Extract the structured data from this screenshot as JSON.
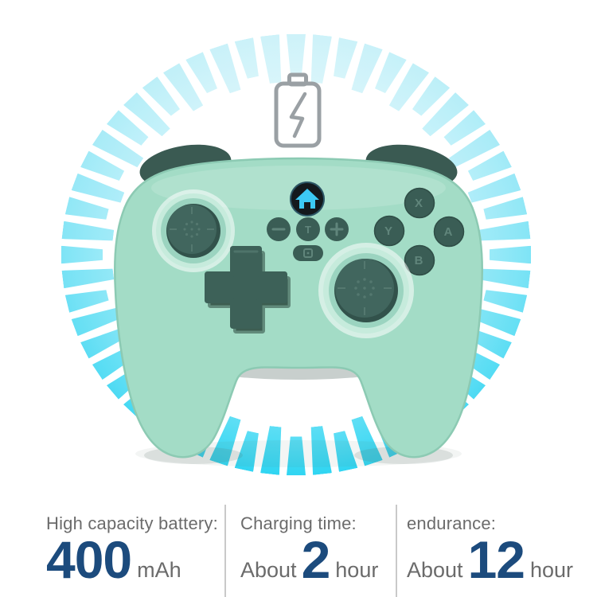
{
  "scene": {
    "background": "#ffffff"
  },
  "ring": {
    "segment_count": 56,
    "color_top": "#cdf2f9",
    "color_bottom": "#2fd5f2",
    "outer_radius": 295,
    "seg_len_long": 64,
    "seg_len_short": 52,
    "seg_width": 24
  },
  "battery_icon": {
    "name": "battery-charging-icon",
    "color": "#9aa0a4"
  },
  "controller": {
    "body_color": "#a3dcc6",
    "button_color": "#3a5d55",
    "dpad_color": "#3d6158",
    "home_button_bg": "#14191d",
    "home_glyph_color": "#3cc9f4",
    "glyph_color": "#60857b",
    "buttons": {
      "x": "X",
      "y": "Y",
      "a": "A",
      "b": "B",
      "turbo": "T"
    },
    "icons": {
      "home": "home-icon",
      "minus": "minus-icon",
      "plus": "plus-icon",
      "capture": "capture-icon"
    }
  },
  "stats": {
    "label_color": "#6b6b6b",
    "value_color": "#1c4b7d",
    "divider_color": "#c9c9c9",
    "items": [
      {
        "label": "High capacity battery:",
        "prefix": "",
        "value": "400",
        "suffix": "mAh"
      },
      {
        "label": "Charging time:",
        "prefix": "About",
        "value": "2",
        "suffix": "hour"
      },
      {
        "label": "endurance:",
        "prefix": "About",
        "value": "12",
        "suffix": "hour"
      }
    ]
  }
}
